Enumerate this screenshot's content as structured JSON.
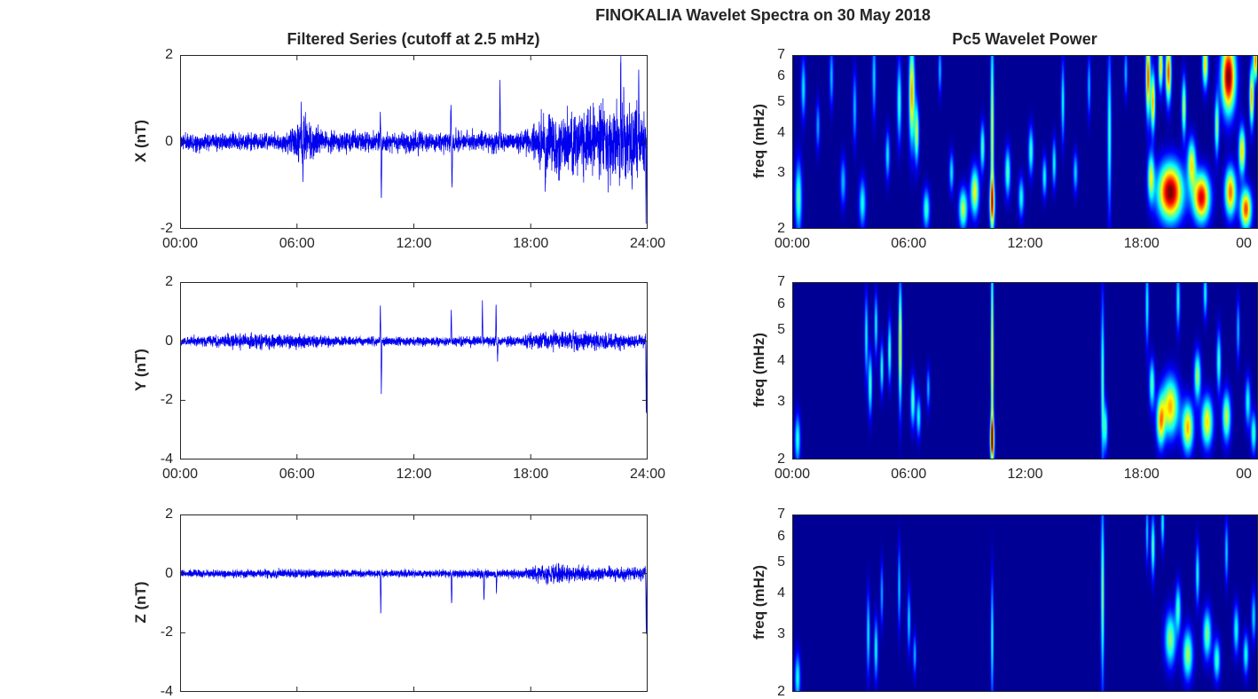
{
  "figure": {
    "title": "FINOKALIA Wavelet Spectra on 30 May 2018",
    "left_column_title": "Filtered Series (cutoff at 2.5 mHz)",
    "right_column_title": "Pc5 Wavelet Power",
    "line_color": "#0000EE",
    "axis_color": "#262626",
    "background_color": "#FFFFFF",
    "colormap": "jet",
    "spectrogram_background": "#000085"
  },
  "chart_data": [
    {
      "type": "line",
      "name": "x-filtered-series",
      "ylabel": "X (nT)",
      "x_range_hours": [
        0,
        24
      ],
      "ylim": [
        -2,
        2
      ],
      "ytick_values": [
        2,
        0,
        -2
      ],
      "ytick_labels": [
        "2",
        "0",
        "-2"
      ],
      "xtick_values": [
        0,
        6,
        12,
        18,
        24
      ],
      "xtick_labels": [
        "00:00",
        "06:00",
        "12:00",
        "18:00",
        "24:00"
      ],
      "seed": 11,
      "noise_envelope": [
        [
          0,
          0.09
        ],
        [
          2,
          0.09
        ],
        [
          5,
          0.1
        ],
        [
          5.8,
          0.14
        ],
        [
          6.1,
          0.3
        ],
        [
          6.5,
          0.26
        ],
        [
          6.9,
          0.14
        ],
        [
          8,
          0.11
        ],
        [
          10,
          0.11
        ],
        [
          12,
          0.12
        ],
        [
          14,
          0.11
        ],
        [
          16,
          0.12
        ],
        [
          17,
          0.11
        ],
        [
          18,
          0.13
        ],
        [
          18.4,
          0.3
        ],
        [
          19,
          0.35
        ],
        [
          20,
          0.33
        ],
        [
          21,
          0.36
        ],
        [
          22,
          0.4
        ],
        [
          22.8,
          0.44
        ],
        [
          23.5,
          0.38
        ],
        [
          24,
          0.34
        ]
      ],
      "spikes": [
        [
          6.22,
          0.95
        ],
        [
          6.3,
          -0.8
        ],
        [
          10.28,
          0.7
        ],
        [
          10.33,
          -1.62
        ],
        [
          13.9,
          1.0
        ],
        [
          13.96,
          -1.3
        ],
        [
          16.42,
          1.45
        ],
        [
          18.75,
          -0.85
        ],
        [
          22.62,
          1.75
        ],
        [
          23.2,
          -1.05
        ],
        [
          23.55,
          0.95
        ],
        [
          23.92,
          -1.55
        ]
      ]
    },
    {
      "type": "line",
      "name": "y-filtered-series",
      "ylabel": "Y (nT)",
      "x_range_hours": [
        0,
        24
      ],
      "ylim": [
        -4,
        2
      ],
      "ytick_values": [
        2,
        0,
        -2,
        -4
      ],
      "ytick_labels": [
        "2",
        "0",
        "-2",
        "-4"
      ],
      "xtick_values": [
        0,
        6,
        12,
        18,
        24
      ],
      "xtick_labels": [
        "00:00",
        "06:00",
        "12:00",
        "18:00",
        "24:00"
      ],
      "seed": 22,
      "noise_envelope": [
        [
          0,
          0.07
        ],
        [
          2,
          0.09
        ],
        [
          3.5,
          0.12
        ],
        [
          5,
          0.12
        ],
        [
          6,
          0.11
        ],
        [
          7,
          0.09
        ],
        [
          9,
          0.07
        ],
        [
          12,
          0.07
        ],
        [
          15,
          0.07
        ],
        [
          17,
          0.08
        ],
        [
          18,
          0.11
        ],
        [
          19,
          0.14
        ],
        [
          20,
          0.15
        ],
        [
          21,
          0.14
        ],
        [
          22,
          0.12
        ],
        [
          23,
          0.11
        ],
        [
          24,
          0.1
        ]
      ],
      "spikes": [
        [
          10.28,
          1.25
        ],
        [
          10.33,
          -1.85
        ],
        [
          13.92,
          1.1
        ],
        [
          15.52,
          1.35
        ],
        [
          16.22,
          1.3
        ],
        [
          16.3,
          -0.7
        ],
        [
          23.93,
          -2.65
        ]
      ]
    },
    {
      "type": "line",
      "name": "z-filtered-series",
      "ylabel": "Z (nT)",
      "x_range_hours": [
        0,
        24
      ],
      "ylim": [
        -4,
        2
      ],
      "ytick_values": [
        2,
        0,
        -2,
        -4
      ],
      "ytick_labels": [
        "2",
        "0",
        "-2",
        "-4"
      ],
      "xtick_values": [
        0,
        6,
        12,
        18,
        24
      ],
      "xtick_labels": [],
      "seed": 33,
      "noise_envelope": [
        [
          0,
          0.05
        ],
        [
          3,
          0.06
        ],
        [
          5,
          0.07
        ],
        [
          7,
          0.06
        ],
        [
          10,
          0.055
        ],
        [
          13,
          0.055
        ],
        [
          16,
          0.06
        ],
        [
          17.5,
          0.065
        ],
        [
          18,
          0.12
        ],
        [
          18.7,
          0.15
        ],
        [
          19.5,
          0.15
        ],
        [
          20.5,
          0.13
        ],
        [
          21.5,
          0.12
        ],
        [
          22.5,
          0.11
        ],
        [
          24,
          0.1
        ]
      ],
      "spikes": [
        [
          10.3,
          -1.45
        ],
        [
          13.94,
          -1.15
        ],
        [
          15.6,
          -1.0
        ],
        [
          16.24,
          -0.6
        ],
        [
          23.93,
          -2.3
        ]
      ]
    },
    {
      "type": "heatmap",
      "name": "x-wavelet-power",
      "ylabel": "freq (mHz)",
      "x_range_hours": [
        0,
        24
      ],
      "flim": [
        2,
        7
      ],
      "y_scale": "log",
      "ytick_values": [
        7,
        6,
        5,
        4,
        3,
        2
      ],
      "ytick_labels": [
        "7",
        "6",
        "5",
        "4",
        "3",
        "2"
      ],
      "xtick_values": [
        0,
        6,
        12,
        18,
        24
      ],
      "xtick_labels": [
        "00:00",
        "06:00",
        "12:00",
        "18:00",
        "00"
      ],
      "background_level": 0.02,
      "feature_format": "[hour, freq_mHz, sigma_hours, sigma_logfreq, intensity_0to1]",
      "features": [
        [
          0.3,
          2.5,
          0.12,
          0.18,
          0.45
        ],
        [
          0.55,
          5.5,
          0.08,
          0.15,
          0.35
        ],
        [
          1.3,
          4.2,
          0.07,
          0.12,
          0.28
        ],
        [
          2.0,
          6.0,
          0.07,
          0.15,
          0.3
        ],
        [
          2.6,
          2.8,
          0.1,
          0.12,
          0.3
        ],
        [
          3.2,
          4.8,
          0.07,
          0.18,
          0.3
        ],
        [
          3.6,
          2.4,
          0.12,
          0.12,
          0.38
        ],
        [
          4.2,
          6.0,
          0.07,
          0.2,
          0.33
        ],
        [
          4.9,
          3.4,
          0.08,
          0.12,
          0.35
        ],
        [
          5.5,
          5.0,
          0.08,
          0.2,
          0.42
        ],
        [
          6.15,
          5.3,
          0.1,
          0.25,
          0.72
        ],
        [
          6.4,
          4.0,
          0.08,
          0.15,
          0.55
        ],
        [
          6.9,
          2.3,
          0.12,
          0.1,
          0.42
        ],
        [
          7.6,
          6.3,
          0.06,
          0.12,
          0.3
        ],
        [
          8.2,
          3.0,
          0.08,
          0.1,
          0.35
        ],
        [
          8.8,
          2.3,
          0.15,
          0.1,
          0.55
        ],
        [
          9.4,
          2.6,
          0.15,
          0.12,
          0.6
        ],
        [
          9.8,
          3.6,
          0.08,
          0.12,
          0.45
        ],
        [
          10.3,
          4.0,
          0.06,
          0.5,
          0.6
        ],
        [
          10.3,
          2.4,
          0.1,
          0.12,
          0.6
        ],
        [
          11.1,
          3.0,
          0.1,
          0.12,
          0.45
        ],
        [
          11.8,
          2.5,
          0.1,
          0.1,
          0.38
        ],
        [
          12.3,
          3.5,
          0.09,
          0.12,
          0.42
        ],
        [
          13.0,
          2.9,
          0.08,
          0.1,
          0.38
        ],
        [
          13.5,
          3.2,
          0.07,
          0.12,
          0.38
        ],
        [
          13.95,
          5.0,
          0.06,
          0.2,
          0.38
        ],
        [
          14.6,
          3.0,
          0.08,
          0.1,
          0.33
        ],
        [
          15.3,
          5.6,
          0.06,
          0.15,
          0.3
        ],
        [
          16.35,
          4.0,
          0.07,
          0.4,
          0.42
        ],
        [
          17.2,
          6.2,
          0.06,
          0.12,
          0.3
        ],
        [
          18.35,
          6.0,
          0.08,
          0.2,
          0.8
        ],
        [
          18.6,
          5.0,
          0.08,
          0.15,
          0.7
        ],
        [
          18.5,
          2.9,
          0.12,
          0.12,
          0.55
        ],
        [
          19.0,
          6.5,
          0.08,
          0.12,
          0.65
        ],
        [
          19.5,
          2.6,
          0.45,
          0.14,
          1.0
        ],
        [
          19.4,
          6.2,
          0.1,
          0.15,
          0.8
        ],
        [
          20.2,
          4.8,
          0.08,
          0.15,
          0.55
        ],
        [
          20.6,
          3.2,
          0.15,
          0.12,
          0.6
        ],
        [
          21.1,
          2.5,
          0.3,
          0.12,
          0.9
        ],
        [
          21.3,
          6.6,
          0.1,
          0.12,
          0.65
        ],
        [
          21.9,
          4.2,
          0.08,
          0.15,
          0.5
        ],
        [
          22.5,
          6.0,
          0.25,
          0.18,
          1.0
        ],
        [
          22.6,
          2.6,
          0.2,
          0.12,
          0.75
        ],
        [
          23.2,
          3.5,
          0.12,
          0.12,
          0.65
        ],
        [
          23.4,
          2.3,
          0.2,
          0.1,
          0.8
        ],
        [
          23.7,
          5.2,
          0.08,
          0.15,
          0.7
        ],
        [
          23.9,
          6.8,
          0.08,
          0.1,
          0.75
        ]
      ]
    },
    {
      "type": "heatmap",
      "name": "y-wavelet-power",
      "ylabel": "freq (mHz)",
      "x_range_hours": [
        0,
        24
      ],
      "flim": [
        2,
        7
      ],
      "y_scale": "log",
      "ytick_values": [
        7,
        6,
        5,
        4,
        3,
        2
      ],
      "ytick_labels": [
        "7",
        "6",
        "5",
        "4",
        "3",
        "2"
      ],
      "xtick_values": [
        0,
        6,
        12,
        18,
        24
      ],
      "xtick_labels": [
        "00:00",
        "06:00",
        "12:00",
        "18:00",
        "00"
      ],
      "background_level": 0.02,
      "feature_format": "[hour, freq_mHz, sigma_hours, sigma_logfreq, intensity_0to1]",
      "features": [
        [
          0.25,
          2.3,
          0.1,
          0.12,
          0.4
        ],
        [
          3.8,
          4.8,
          0.06,
          0.2,
          0.38
        ],
        [
          4.0,
          3.4,
          0.07,
          0.15,
          0.45
        ],
        [
          4.3,
          5.2,
          0.06,
          0.15,
          0.38
        ],
        [
          4.6,
          3.8,
          0.06,
          0.12,
          0.42
        ],
        [
          5.0,
          4.3,
          0.06,
          0.15,
          0.45
        ],
        [
          5.55,
          4.5,
          0.06,
          0.3,
          0.68
        ],
        [
          6.2,
          3.0,
          0.08,
          0.12,
          0.45
        ],
        [
          6.5,
          2.7,
          0.08,
          0.1,
          0.38
        ],
        [
          7.0,
          3.3,
          0.06,
          0.1,
          0.3
        ],
        [
          10.3,
          4.0,
          0.05,
          0.55,
          0.66
        ],
        [
          10.3,
          2.3,
          0.08,
          0.1,
          0.72
        ],
        [
          16.0,
          3.5,
          0.06,
          0.4,
          0.45
        ],
        [
          16.15,
          2.5,
          0.08,
          0.12,
          0.4
        ],
        [
          18.3,
          6.0,
          0.06,
          0.2,
          0.38
        ],
        [
          18.55,
          3.4,
          0.1,
          0.12,
          0.45
        ],
        [
          19.0,
          2.6,
          0.15,
          0.12,
          0.62
        ],
        [
          19.5,
          2.9,
          0.3,
          0.14,
          0.68
        ],
        [
          19.9,
          6.2,
          0.07,
          0.15,
          0.38
        ],
        [
          20.4,
          2.5,
          0.2,
          0.12,
          0.68
        ],
        [
          20.9,
          3.6,
          0.12,
          0.12,
          0.52
        ],
        [
          21.4,
          2.6,
          0.2,
          0.12,
          0.64
        ],
        [
          21.3,
          6.5,
          0.07,
          0.12,
          0.38
        ],
        [
          22.0,
          4.0,
          0.08,
          0.15,
          0.42
        ],
        [
          22.4,
          2.7,
          0.15,
          0.12,
          0.55
        ],
        [
          23.0,
          5.0,
          0.06,
          0.15,
          0.3
        ],
        [
          23.5,
          3.0,
          0.1,
          0.12,
          0.38
        ],
        [
          23.8,
          2.4,
          0.1,
          0.1,
          0.42
        ]
      ]
    },
    {
      "type": "heatmap",
      "name": "z-wavelet-power",
      "ylabel": "freq (mHz)",
      "x_range_hours": [
        0,
        24
      ],
      "flim": [
        2,
        7
      ],
      "y_scale": "log",
      "ytick_values": [
        7,
        6,
        5,
        4,
        3,
        2
      ],
      "ytick_labels": [
        "7",
        "6",
        "5",
        "4",
        "3",
        "2"
      ],
      "xtick_values": [
        0,
        6,
        12,
        18,
        24
      ],
      "xtick_labels": [],
      "background_level": 0.02,
      "feature_format": "[hour, freq_mHz, sigma_hours, sigma_logfreq, intensity_0to1]",
      "features": [
        [
          0.25,
          2.2,
          0.1,
          0.12,
          0.38
        ],
        [
          3.9,
          3.0,
          0.06,
          0.2,
          0.36
        ],
        [
          4.3,
          2.7,
          0.07,
          0.15,
          0.38
        ],
        [
          4.6,
          4.0,
          0.05,
          0.15,
          0.3
        ],
        [
          5.5,
          4.2,
          0.05,
          0.2,
          0.33
        ],
        [
          6.0,
          3.3,
          0.06,
          0.15,
          0.33
        ],
        [
          6.3,
          2.6,
          0.06,
          0.1,
          0.3
        ],
        [
          10.3,
          2.9,
          0.05,
          0.3,
          0.4
        ],
        [
          16.0,
          4.0,
          0.06,
          0.45,
          0.5
        ],
        [
          18.3,
          6.2,
          0.05,
          0.15,
          0.33
        ],
        [
          18.6,
          5.6,
          0.07,
          0.15,
          0.45
        ],
        [
          19.1,
          6.6,
          0.06,
          0.12,
          0.38
        ],
        [
          19.5,
          2.9,
          0.2,
          0.13,
          0.5
        ],
        [
          19.9,
          3.6,
          0.1,
          0.12,
          0.42
        ],
        [
          20.4,
          2.6,
          0.18,
          0.12,
          0.52
        ],
        [
          20.9,
          4.6,
          0.07,
          0.15,
          0.38
        ],
        [
          21.4,
          3.0,
          0.15,
          0.12,
          0.48
        ],
        [
          21.9,
          2.5,
          0.12,
          0.1,
          0.42
        ],
        [
          22.4,
          5.4,
          0.06,
          0.15,
          0.33
        ],
        [
          22.9,
          3.1,
          0.1,
          0.12,
          0.38
        ],
        [
          23.4,
          2.6,
          0.1,
          0.1,
          0.38
        ],
        [
          23.8,
          3.4,
          0.08,
          0.12,
          0.33
        ]
      ]
    }
  ]
}
